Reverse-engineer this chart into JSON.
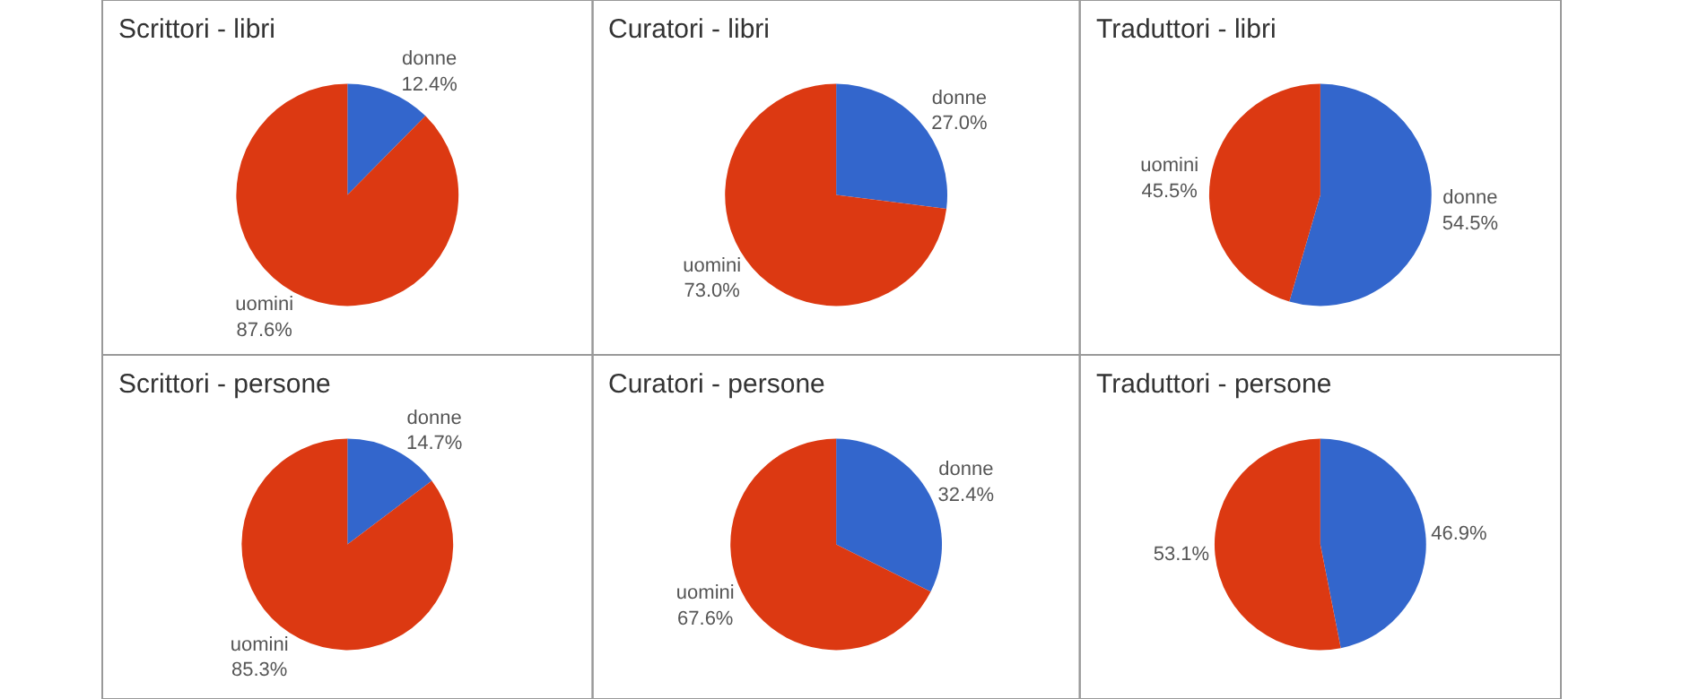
{
  "chart_data": [
    {
      "type": "pie",
      "title": "Scrittori - libri",
      "categories": [
        "donne",
        "uomini"
      ],
      "values": [
        12.4,
        87.6
      ],
      "value_labels": [
        "12.4%",
        "87.6%"
      ],
      "colors": [
        "#3366cc",
        "#dc3912"
      ]
    },
    {
      "type": "pie",
      "title": "Curatori - libri",
      "categories": [
        "donne",
        "uomini"
      ],
      "values": [
        27.0,
        73.0
      ],
      "value_labels": [
        "27.0%",
        "73.0%"
      ],
      "colors": [
        "#3366cc",
        "#dc3912"
      ]
    },
    {
      "type": "pie",
      "title": "Traduttori - libri",
      "categories": [
        "donne",
        "uomini"
      ],
      "values": [
        54.5,
        45.5
      ],
      "value_labels": [
        "54.5%",
        "45.5%"
      ],
      "colors": [
        "#3366cc",
        "#dc3912"
      ]
    },
    {
      "type": "pie",
      "title": "Scrittori - persone",
      "categories": [
        "donne",
        "uomini"
      ],
      "values": [
        14.7,
        85.3
      ],
      "value_labels": [
        "14.7%",
        "85.3%"
      ],
      "colors": [
        "#3366cc",
        "#dc3912"
      ]
    },
    {
      "type": "pie",
      "title": "Curatori - persone",
      "categories": [
        "donne",
        "uomini"
      ],
      "values": [
        32.4,
        67.6
      ],
      "value_labels": [
        "32.4%",
        "67.6%"
      ],
      "colors": [
        "#3366cc",
        "#dc3912"
      ]
    },
    {
      "type": "pie",
      "title": "Traduttori - persone",
      "categories": [
        null,
        null
      ],
      "values": [
        46.9,
        53.1
      ],
      "value_labels": [
        "46.9%",
        "53.1%"
      ],
      "colors": [
        "#3366cc",
        "#dc3912"
      ]
    }
  ]
}
